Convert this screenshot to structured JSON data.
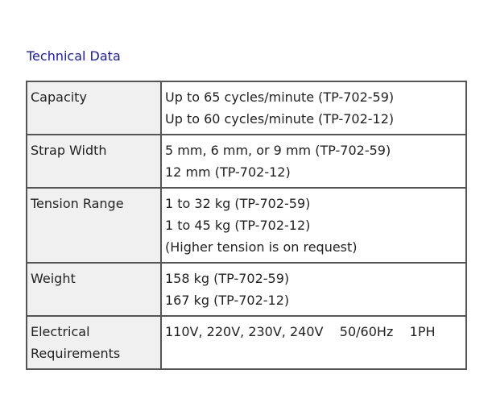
{
  "title": "Technical Data",
  "colors": {
    "title": "#1a1aa8",
    "border": "#555555",
    "label_bg": "#f0f0f0"
  },
  "rows": [
    {
      "label": [
        "Capacity"
      ],
      "values": [
        "Up to 65 cycles/minute (TP-702-59)",
        "Up to 60 cycles/minute (TP-702-12)"
      ]
    },
    {
      "label": [
        "Strap Width"
      ],
      "values": [
        "5 mm, 6 mm, or 9 mm (TP-702-59)",
        "12 mm (TP-702-12)"
      ]
    },
    {
      "label": [
        "Tension Range"
      ],
      "values": [
        "1 to 32 kg (TP-702-59)",
        "1 to 45 kg (TP-702-12)",
        "(Higher tension is on request)"
      ]
    },
    {
      "label": [
        "Weight"
      ],
      "values": [
        "158 kg (TP-702-59)",
        "167 kg (TP-702-12)"
      ]
    },
    {
      "label": [
        "Electrical",
        "Requirements"
      ],
      "values": [
        "110V, 220V, 230V, 240V    50/60Hz    1PH"
      ]
    }
  ]
}
